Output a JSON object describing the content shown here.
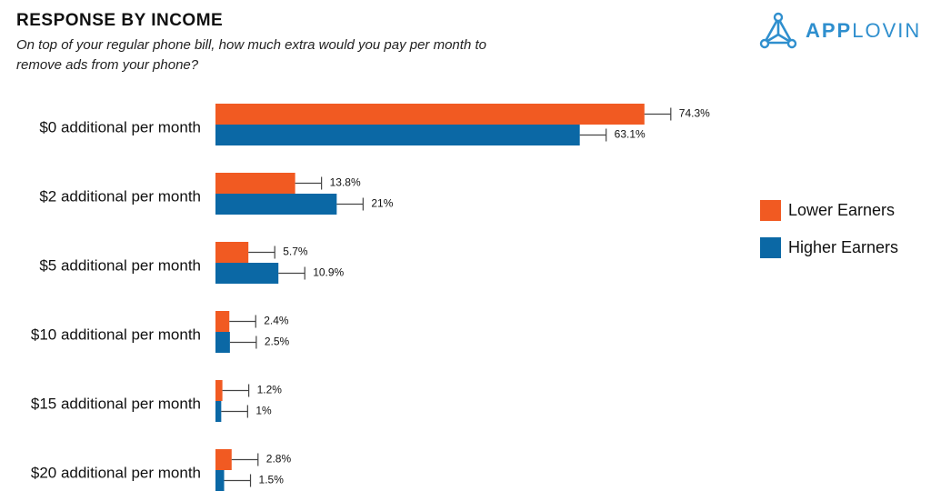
{
  "header": {
    "title": "RESPONSE BY INCOME",
    "subtitle": "On top of your regular phone bill, how much extra would you pay per month to remove ads from your phone?"
  },
  "brand": {
    "logo_icon": "applovin-triangle-icon",
    "name_bold": "APP",
    "name_light": "LOVIN",
    "color": "#2f8fce"
  },
  "chart_data": {
    "type": "bar",
    "orientation": "horizontal",
    "categories": [
      "$0 additional per month",
      "$2 additional per month",
      "$5 additional per month",
      "$10 additional per month",
      "$15 additional per month",
      "$20 additional per month"
    ],
    "series": [
      {
        "name": "Lower Earners",
        "color": "#f15a22",
        "values": [
          74.3,
          13.8,
          5.7,
          2.4,
          1.2,
          2.8
        ],
        "labels": [
          "74.3%",
          "13.8%",
          "5.7%",
          "2.4%",
          "1.2%",
          "2.8%"
        ]
      },
      {
        "name": "Higher Earners",
        "color": "#0b68a5",
        "values": [
          63.1,
          21,
          10.9,
          2.5,
          1,
          1.5
        ],
        "labels": [
          "63.1%",
          "21%",
          "10.9%",
          "2.5%",
          "1%",
          "1.5%"
        ]
      }
    ],
    "error_bars": true,
    "xlim": [
      0,
      100
    ],
    "grid": false,
    "legend_position": "right"
  }
}
